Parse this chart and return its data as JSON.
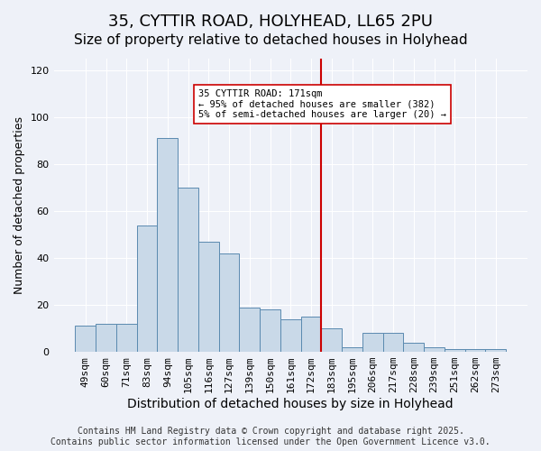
{
  "title": "35, CYTTIR ROAD, HOLYHEAD, LL65 2PU",
  "subtitle": "Size of property relative to detached houses in Holyhead",
  "xlabel": "Distribution of detached houses by size in Holyhead",
  "ylabel": "Number of detached properties",
  "categories": [
    "49sqm",
    "60sqm",
    "71sqm",
    "83sqm",
    "94sqm",
    "105sqm",
    "116sqm",
    "127sqm",
    "139sqm",
    "150sqm",
    "161sqm",
    "172sqm",
    "183sqm",
    "195sqm",
    "206sqm",
    "217sqm",
    "228sqm",
    "239sqm",
    "251sqm",
    "262sqm",
    "273sqm"
  ],
  "values": [
    11,
    12,
    12,
    54,
    91,
    70,
    47,
    42,
    19,
    18,
    14,
    15,
    10,
    2,
    8,
    8,
    4,
    2,
    1,
    1,
    1
  ],
  "bar_color": "#c9d9e8",
  "bar_edge_color": "#5a8ab0",
  "vline_x": 11.5,
  "vline_color": "#cc0000",
  "annotation_text": "35 CYTTIR ROAD: 171sqm\n← 95% of detached houses are smaller (382)\n5% of semi-detached houses are larger (20) →",
  "footer": "Contains HM Land Registry data © Crown copyright and database right 2025.\nContains public sector information licensed under the Open Government Licence v3.0.",
  "ylim": [
    0,
    125
  ],
  "yticks": [
    0,
    20,
    40,
    60,
    80,
    100,
    120
  ],
  "title_fontsize": 13,
  "subtitle_fontsize": 11,
  "xlabel_fontsize": 10,
  "ylabel_fontsize": 9,
  "tick_fontsize": 8,
  "footer_fontsize": 7,
  "background_color": "#eef1f8",
  "plot_background": "#eef1f8"
}
